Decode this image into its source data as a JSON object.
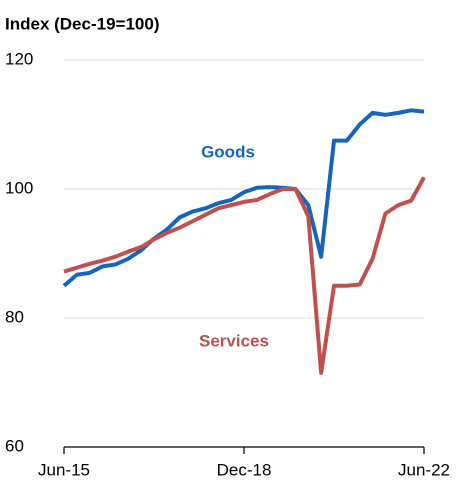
{
  "chart_data": {
    "type": "line",
    "subtitle": "Index (Dec-19=100)",
    "categories": [
      "Jun-15",
      null,
      null,
      null,
      null,
      null,
      null,
      null,
      null,
      null,
      null,
      null,
      null,
      null,
      "Dec-18",
      null,
      null,
      null,
      null,
      null,
      null,
      null,
      null,
      null,
      null,
      null,
      null,
      null,
      "Jun-22"
    ],
    "series": [
      {
        "name": "Goods",
        "color": "#1565c0",
        "values": [
          85.0,
          86.7,
          87.0,
          88.0,
          88.3,
          89.2,
          90.5,
          92.3,
          93.7,
          95.6,
          96.5,
          97.0,
          97.8,
          98.3,
          99.5,
          100.2,
          100.3,
          100.2,
          100.0,
          97.5,
          89.5,
          107.5,
          107.5,
          110.0,
          111.8,
          111.5,
          111.8,
          112.2,
          112.0
        ]
      },
      {
        "name": "Services",
        "color": "#c0504d",
        "values": [
          87.2,
          87.8,
          88.4,
          88.9,
          89.5,
          90.3,
          91.0,
          92.2,
          93.2,
          94.0,
          95.0,
          96.0,
          97.0,
          97.5,
          98.0,
          98.3,
          99.2,
          100.0,
          100.0,
          95.8,
          71.5,
          85.0,
          85.0,
          85.2,
          89.2,
          96.2,
          97.5,
          98.2,
          101.8
        ]
      }
    ],
    "ylim": [
      60,
      120
    ],
    "yticks": [
      60,
      80,
      100,
      120
    ],
    "grid": true
  }
}
